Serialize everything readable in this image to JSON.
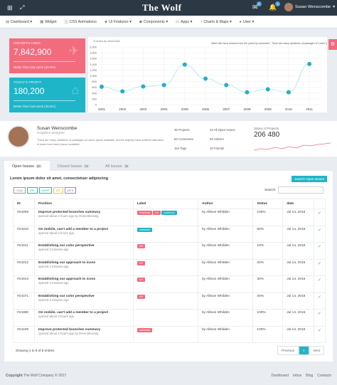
{
  "header": {
    "logo": "The Wolf",
    "mail_count": "2",
    "bell_count": "1",
    "user_name": "Susan Wenscombe",
    "user_caret": "▾"
  },
  "nav": [
    {
      "icon": "dashboard-icon",
      "glyph": "▤",
      "label": "Dashboard ▾"
    },
    {
      "icon": "widget-icon",
      "glyph": "▦",
      "label": "Widget"
    },
    {
      "icon": "animations-icon",
      "glyph": "◫",
      "label": "CSS Animations"
    },
    {
      "icon": "ui-features-icon",
      "glyph": "◈",
      "label": "UI Features ▾"
    },
    {
      "icon": "components-icon",
      "glyph": "◆",
      "label": "Components ▾"
    },
    {
      "icon": "apps-icon",
      "glyph": "▭",
      "label": "Apps ▾"
    },
    {
      "icon": "charts-maps-icon",
      "glyph": "◔",
      "label": "Charts & Maps ▾"
    },
    {
      "icon": "user-icon",
      "glyph": "●",
      "label": "User ▾"
    }
  ],
  "kpis": [
    {
      "label": "ROCKETS USED",
      "value": "7,842,900",
      "foot": "Better than last week (40.5%)",
      "color": "#f36c7e",
      "icon": "rocket-icon",
      "glyph": "✈"
    },
    {
      "label": "TODAY'S PROFIT",
      "value": "180,200",
      "foot": "Better than last week (45.5%)",
      "color": "#1fb5c8",
      "icon": "tag-icon",
      "glyph": "⌂"
    }
  ],
  "chart_data": {
    "type": "line",
    "title": "",
    "ylabel": "% share by awsChairs",
    "xlabel": "",
    "categories": [
      "2001",
      "2002",
      "2003",
      "2004",
      "2005",
      "2006",
      "2007",
      "2008",
      "2009",
      "2010",
      "2011"
    ],
    "y_ticks": [
      "0",
      "200",
      "400",
      "600",
      "800",
      "1,000",
      "1,200",
      "1,400",
      "1,600",
      "1,800",
      "2,000"
    ],
    "ylim": [
      0,
      2000
    ],
    "series": [
      {
        "name": "",
        "values": [
          620,
          460,
          630,
          680,
          1390,
          900,
          680,
          430,
          530,
          430,
          1410
        ]
      }
    ],
    "annotations": [
      "Sales rise have reduced over the years by customers",
      "There are many variations of passages of Lorem Ipsum available, but the majority have suffered"
    ],
    "color": "#25aec9",
    "grid": true
  },
  "profile": {
    "name": "Susan Wenscombe",
    "role": "Graphics designer",
    "bio": "There are many variations of passages of Lorem Ipsum available, but the majority have suffered alteration in some form lorem ipsum available.",
    "stats": [
      "35 Projects",
      "23 All Open Issues",
      "83 Comments",
      "54 Articles",
      "154 Tags",
      "10 Friends"
    ],
    "projects_label": "Status of Projects",
    "projects_value": "206 480"
  },
  "tabs": [
    {
      "label": "Open Issues",
      "count": "20"
    },
    {
      "label": "Closed Issues",
      "count": "20"
    },
    {
      "label": "All Issues",
      "count": "20"
    }
  ],
  "issues": {
    "heading": "Lorem ipsum dolor sit amet, consectetuer adipiscing",
    "search_button": "Search Open Issues",
    "export_buttons": [
      "copy",
      "csv",
      "excel",
      "pdf",
      "print"
    ],
    "search_label": "Search:",
    "search_value": "",
    "columns": [
      "ID",
      "Position",
      "Label",
      "Author",
      "Status",
      "date",
      ""
    ],
    "rows": [
      {
        "id": "#24309",
        "title": "Improve protected branches summary",
        "sub": "opened about 2 hours ago by Drew Blessing",
        "tags": [
          {
            "t": "Frontend",
            "c": "#f36c7e"
          },
          {
            "t": "UX",
            "c": "#f36c7e"
          },
          {
            "t": "customer",
            "c": "#1fb5c8"
          }
        ],
        "author": "by Allison Whilden",
        "status": "100%",
        "date": "Jul 14, 2016"
      },
      {
        "id": "#24310",
        "title": "On mobile, can't add a member to a project",
        "sub": "opened about 3 hours ago",
        "tags": [
          {
            "t": "customer",
            "c": "#1fb5c8"
          }
        ],
        "author": "by Allison Whilden",
        "status": "50%",
        "date": "Jul 14, 2016"
      },
      {
        "id": "#24311",
        "title": "Establishing our color perspective",
        "sub": "opened 3 minutes ago",
        "tags": [
          {
            "t": "UX",
            "c": "#f36c7e"
          }
        ],
        "author": "by Allison Whilden",
        "status": "10%",
        "date": "Jul 14, 2016"
      },
      {
        "id": "#24312",
        "title": "Establishing our approach to icons",
        "sub": "opened 3 minutes ago",
        "tags": [
          {
            "t": "UX",
            "c": "#f36c7e"
          }
        ],
        "author": "by Allison Whilden",
        "status": "20%",
        "date": "Jul 14, 2016"
      },
      {
        "id": "#24313",
        "title": "Establishing our approach to icons",
        "sub": "opened 3 minutes ago",
        "tags": [
          {
            "t": "UX",
            "c": "#f36c7e"
          }
        ],
        "author": "by Allison Whilden",
        "status": "30%",
        "date": "Jul 14, 2016"
      },
      {
        "id": "#24371",
        "title": "Establishing our color perspective",
        "sub": "opened 3 minutes ago",
        "tags": [
          {
            "t": "UX",
            "c": "#f36c7e"
          }
        ],
        "author": "by Allison Whilden",
        "status": "40%",
        "date": "Jul 14, 2016"
      },
      {
        "id": "#24380",
        "title": "On mobile, can't add a member to a project",
        "sub": "opened about 3 hours ago",
        "tags": [],
        "author": "by Allison Whilden",
        "status": "100%",
        "date": "Jul 14, 2016"
      },
      {
        "id": "#24109",
        "title": "Improve protected branches summary",
        "sub": "opened about 2 hours ago by Drew Blessing",
        "tags": [
          {
            "t": "customer",
            "c": "#f36c7e"
          }
        ],
        "author": "by Allison Whilden",
        "status": "100%",
        "date": "Jul 14, 2016"
      }
    ],
    "info": "Showing 1 to 8 of 8 entries",
    "pagination": [
      "Previous",
      "1",
      "Next"
    ]
  },
  "footer": {
    "copyright": "Copyright",
    "company": " The Wolf Company © 2017",
    "links": [
      "Dashboard",
      "Inbox",
      "Blog",
      "Contacts"
    ]
  }
}
